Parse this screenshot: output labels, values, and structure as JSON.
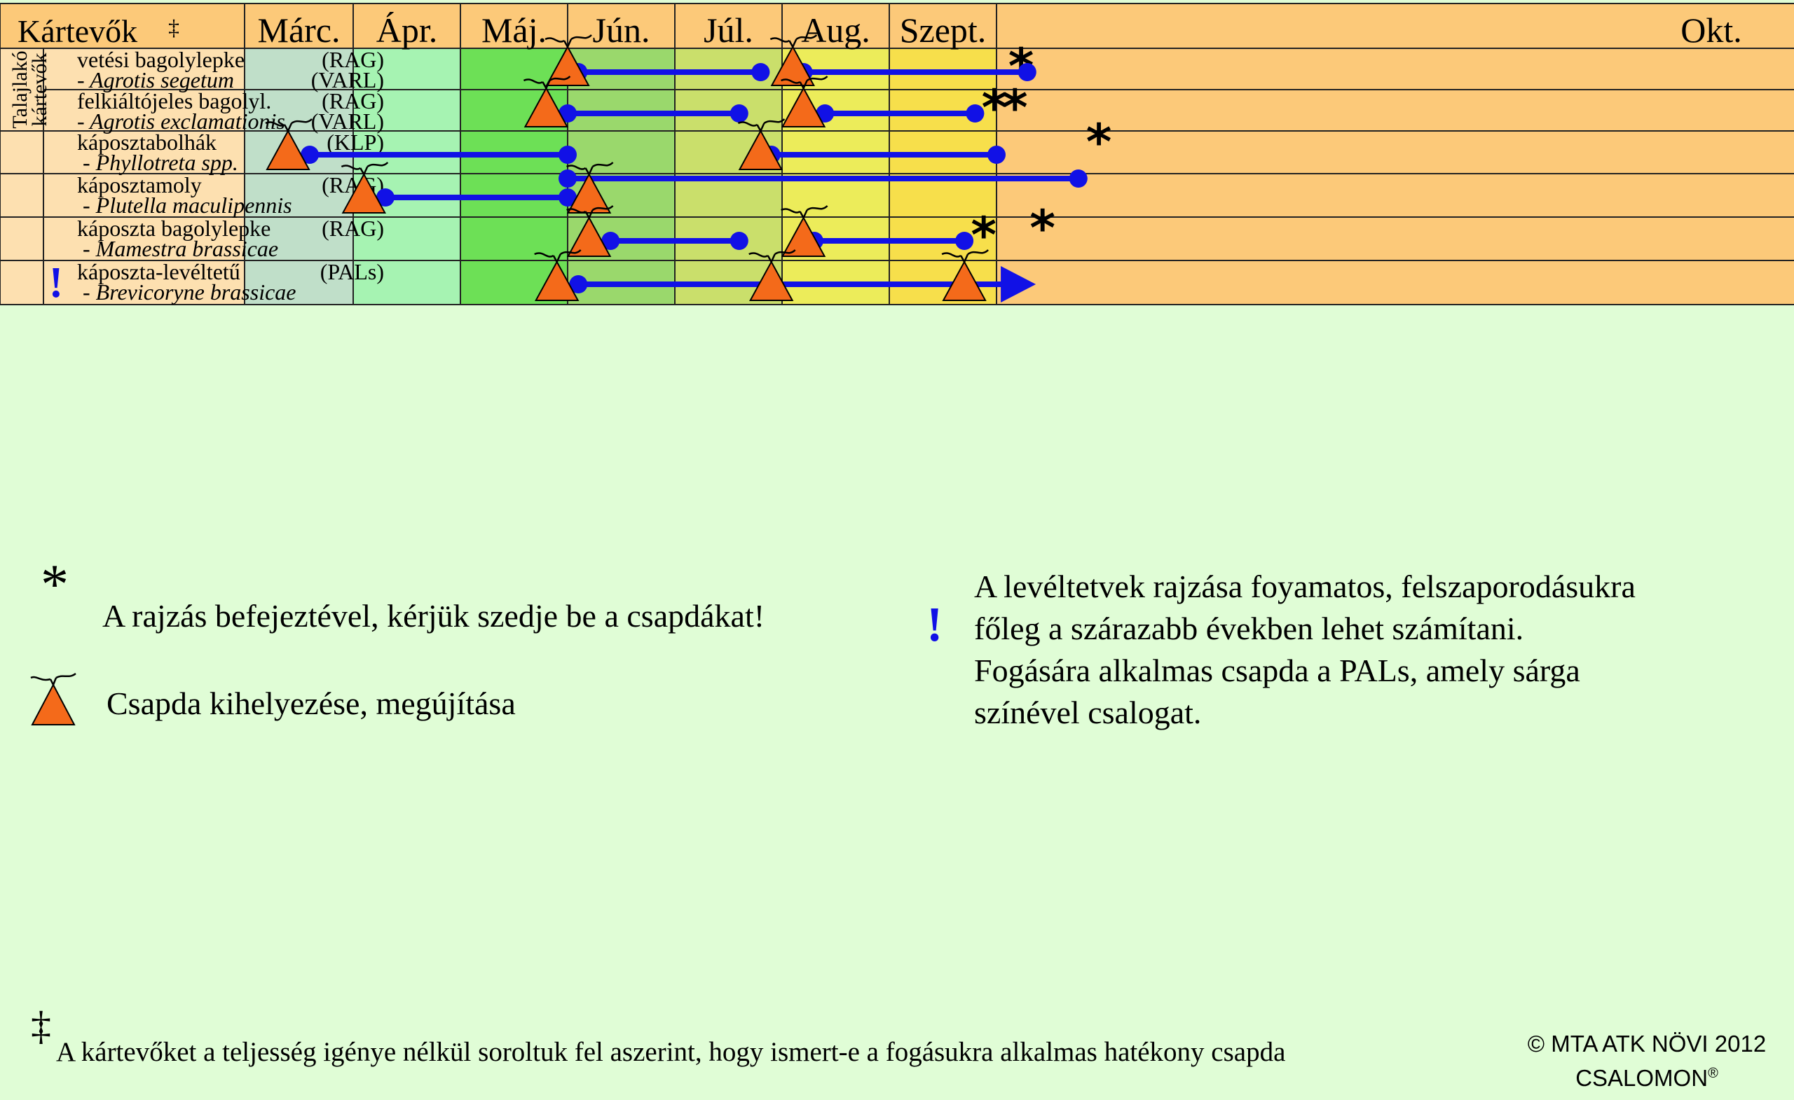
{
  "header": {
    "title": "Kártevők",
    "title_mark": "‡",
    "months": [
      "Márc.",
      "Ápr.",
      "Máj.",
      "Jún.",
      "Júl.",
      "Aug.",
      "Szept.",
      "Okt."
    ]
  },
  "group_label": [
    "Talajlakó",
    "kártevők"
  ],
  "colors": {
    "header_bg": "#fcc979",
    "label_bg": "#fde0b0",
    "month_bg": [
      "#c0dfc9",
      "#a6f3b2",
      "#6de056",
      "#9ad86c",
      "#cadf6b",
      "#ecec5a",
      "#f7df4b",
      "#fcc979"
    ],
    "line": "#1111e6",
    "trap_fill": "#f46a1a",
    "exclaim": "#1111e6"
  },
  "rows": [
    {
      "name": "vetési bagolylepke",
      "latin": "- Agrotis segetum",
      "trap1": "(RAG)",
      "trap2": "(VARL)",
      "group": "talaj",
      "exclaim": ""
    },
    {
      "name": "felkiáltójeles bagolyl.",
      "latin": "- Agrotis exclamationis",
      "trap1": "(RAG)",
      "trap2": "(VARL)",
      "group": "talaj",
      "exclaim": ""
    },
    {
      "name": "káposztabolhák",
      "latin": "- Phyllotreta spp.",
      "trap1": "(KLP)",
      "trap2": "",
      "group": "",
      "exclaim": ""
    },
    {
      "name": "káposztamoly",
      "latin": "- Plutella maculipennis",
      "trap1": "(RAG)",
      "trap2": "",
      "group": "",
      "exclaim": ""
    },
    {
      "name": "káposzta bagolylepke",
      "latin": "- Mamestra brassicae",
      "trap1": "(RAG)",
      "trap2": "",
      "group": "",
      "exclaim": ""
    },
    {
      "name": "káposzta-levéltetű",
      "latin": "- Brevicoryne brassicae",
      "trap1": "(PALs)",
      "trap2": "",
      "group": "",
      "exclaim": "!"
    }
  ],
  "schedule": [
    {
      "row": 0,
      "traps": [
        3.0,
        5.1
      ],
      "bars": [
        [
          3.1,
          4.8
        ],
        [
          5.2,
          7.3
        ]
      ],
      "end_marks": [
        7.24
      ]
    },
    {
      "row": 1,
      "traps": [
        2.8,
        5.2
      ],
      "bars": [
        [
          3.0,
          4.6
        ],
        [
          5.4,
          6.8
        ]
      ],
      "end_marks": [
        6.98,
        7.18
      ]
    },
    {
      "row": 2,
      "traps": [
        0.4,
        4.8
      ],
      "bars": [
        [
          0.6,
          3.0
        ],
        [
          4.9,
          7.0
        ]
      ],
      "end_marks": [
        8.0
      ]
    },
    {
      "row": 3,
      "traps": [
        1.1,
        3.2
      ],
      "bars": [
        [
          1.3,
          3.0
        ],
        [
          3.0,
          7.8
        ]
      ],
      "end_marks": []
    },
    {
      "row": 4,
      "traps": [
        3.2,
        5.2
      ],
      "bars": [
        [
          3.4,
          4.6
        ],
        [
          5.3,
          6.7
        ]
      ],
      "end_marks": [
        6.88,
        7.45
      ]
    },
    {
      "row": 5,
      "traps": [
        2.9,
        4.9,
        6.7
      ],
      "bars": [
        [
          3.1,
          7.3
        ]
      ],
      "arrow_to": 7.35,
      "end_marks": []
    }
  ],
  "legend": {
    "asterisk": "*",
    "asterisk_text": "A rajzás befejeztével, kérjük szedje be a csapdákat!",
    "trap_text": "Csapda kihelyezése, megújítása",
    "exclaim": "!",
    "exclaim_lines": [
      "A levéltetvek rajzása foyamatos, felszaporodásukra",
      "főleg a szárazabb években lehet számítani.",
      "Fogására alkalmas csapda a PALs, amely sárga",
      "színével csalogat."
    ]
  },
  "footnote": {
    "mark": "‡",
    "text": "A kártevőket a teljesség igénye nélkül soroltuk fel aszerint, hogy ismert-e a fogásukra alkalmas hatékony csapda"
  },
  "copyright": {
    "line1": "© MTA ATK NÖVI 2012",
    "line2": "CSALOMON",
    "line2_mark": "®"
  }
}
